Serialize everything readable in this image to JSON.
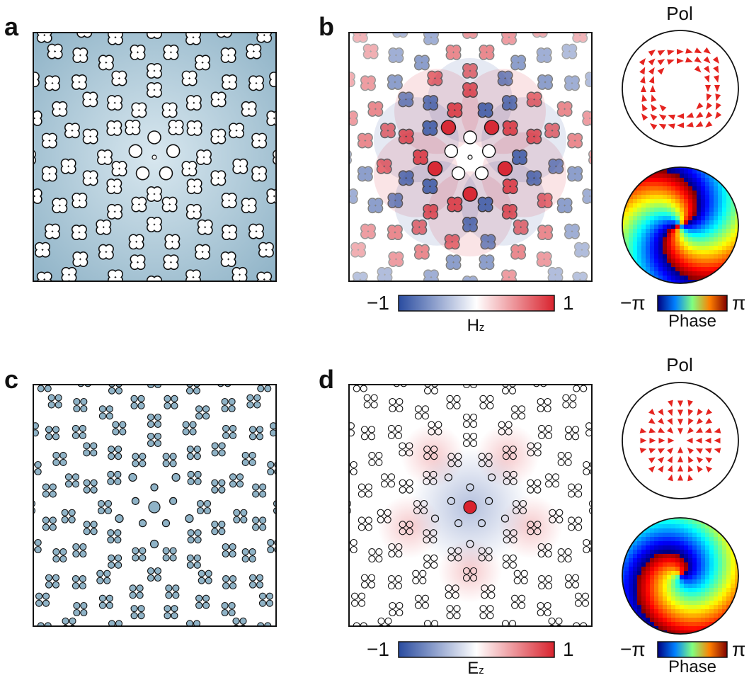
{
  "panels": {
    "a": {
      "letter": "a"
    },
    "b": {
      "letter": "b"
    },
    "c": {
      "letter": "c"
    },
    "d": {
      "letter": "d"
    }
  },
  "top_row": {
    "pol_title": "Pol",
    "field_colorbar": {
      "min": "−1",
      "max": "1",
      "label_main": "H",
      "label_sub": "z"
    },
    "phase_colorbar": {
      "min": "−π",
      "max": "π",
      "label": "Phase"
    }
  },
  "bottom_row": {
    "pol_title": "Pol",
    "field_colorbar": {
      "min": "−1",
      "max": "1",
      "label_main": "E",
      "label_sub": "z"
    },
    "phase_colorbar": {
      "min": "−π",
      "max": "π",
      "label": "Phase"
    }
  },
  "colors": {
    "lattice_fill": "#8fb3c7",
    "field_negative": "#2a4ca0",
    "field_positive": "#d9232e",
    "arrow": "#e52420",
    "outline": "#111111"
  }
}
